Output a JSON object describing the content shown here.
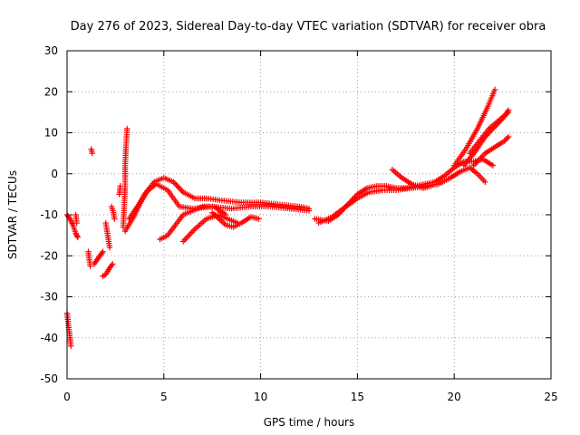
{
  "chart_data": {
    "type": "scatter",
    "title": "Day 276 of 2023, Sidereal Day-to-day VTEC variation (SDTVAR) for receiver obra",
    "xlabel": "GPS time / hours",
    "ylabel": "SDTVAR / TECUs",
    "xlim": [
      0,
      25
    ],
    "ylim": [
      -50,
      30
    ],
    "x_ticks": [
      0,
      5,
      10,
      15,
      20,
      25
    ],
    "y_ticks": [
      -50,
      -40,
      -30,
      -20,
      -10,
      0,
      10,
      20,
      30
    ],
    "grid": true,
    "marker": "plus",
    "series": [
      {
        "name": "SDTVAR",
        "color": "#ff0000",
        "segments": [
          [
            [
              0.0,
              -34
            ],
            [
              0.05,
              -36
            ],
            [
              0.1,
              -38
            ],
            [
              0.15,
              -40
            ],
            [
              0.2,
              -42
            ]
          ],
          [
            [
              0.0,
              -10
            ],
            [
              0.15,
              -11
            ],
            [
              0.3,
              -12.5
            ],
            [
              0.45,
              -14.5
            ],
            [
              0.55,
              -15.5
            ]
          ],
          [
            [
              0.45,
              -10
            ],
            [
              0.5,
              -12
            ]
          ],
          [
            [
              1.1,
              -19
            ],
            [
              1.15,
              -21
            ],
            [
              1.2,
              -22.5
            ]
          ],
          [
            [
              1.25,
              6
            ],
            [
              1.3,
              5
            ]
          ],
          [
            [
              1.4,
              -22
            ],
            [
              1.55,
              -21
            ],
            [
              1.7,
              -20
            ],
            [
              1.85,
              -19
            ]
          ],
          [
            [
              1.85,
              -25
            ],
            [
              2.0,
              -24.5
            ],
            [
              2.2,
              -23
            ],
            [
              2.35,
              -22
            ]
          ],
          [
            [
              2.0,
              -12
            ],
            [
              2.1,
              -15
            ],
            [
              2.2,
              -18
            ]
          ],
          [
            [
              2.3,
              -8
            ],
            [
              2.4,
              -9.5
            ],
            [
              2.45,
              -11
            ]
          ],
          [
            [
              2.7,
              -5
            ],
            [
              2.75,
              -3
            ]
          ],
          [
            [
              2.9,
              -13
            ],
            [
              2.95,
              -8
            ],
            [
              3.0,
              -3
            ],
            [
              3.0,
              2
            ],
            [
              3.05,
              7
            ],
            [
              3.1,
              11
            ]
          ],
          [
            [
              3.0,
              -14
            ],
            [
              3.5,
              -10
            ],
            [
              4.0,
              -5
            ],
            [
              4.5,
              -2
            ],
            [
              5.0,
              -1
            ],
            [
              5.5,
              -2
            ],
            [
              6.0,
              -4.5
            ],
            [
              6.6,
              -6
            ],
            [
              7.2,
              -6
            ],
            [
              8.0,
              -6.5
            ],
            [
              9.0,
              -7
            ],
            [
              10.0,
              -7
            ],
            [
              11.0,
              -7.5
            ],
            [
              12.0,
              -8
            ],
            [
              12.5,
              -8.5
            ]
          ],
          [
            [
              3.2,
              -11
            ],
            [
              3.7,
              -7.5
            ],
            [
              4.2,
              -4
            ],
            [
              4.6,
              -2.5
            ],
            [
              5.2,
              -4
            ],
            [
              5.8,
              -8
            ],
            [
              6.5,
              -8.5
            ],
            [
              7.5,
              -8
            ],
            [
              8.5,
              -8.5
            ],
            [
              9.5,
              -8
            ],
            [
              10.5,
              -8
            ],
            [
              11.5,
              -8.5
            ],
            [
              12.5,
              -9
            ]
          ],
          [
            [
              4.8,
              -16
            ],
            [
              5.2,
              -15
            ],
            [
              5.6,
              -12.5
            ],
            [
              6.0,
              -10
            ],
            [
              6.5,
              -9
            ],
            [
              7.0,
              -8
            ],
            [
              7.6,
              -8
            ],
            [
              8.2,
              -10
            ]
          ],
          [
            [
              6.0,
              -16.5
            ],
            [
              6.6,
              -13.5
            ],
            [
              7.2,
              -11
            ],
            [
              7.8,
              -10
            ],
            [
              8.3,
              -11
            ],
            [
              8.8,
              -12
            ]
          ],
          [
            [
              7.5,
              -9.5
            ],
            [
              8.2,
              -12.5
            ],
            [
              8.6,
              -13
            ],
            [
              9.0,
              -12
            ],
            [
              9.5,
              -10.5
            ],
            [
              9.9,
              -11
            ]
          ],
          [
            [
              12.8,
              -11
            ],
            [
              13.5,
              -11.5
            ],
            [
              14.0,
              -10
            ],
            [
              14.5,
              -7.5
            ],
            [
              15.0,
              -5
            ],
            [
              15.5,
              -3.5
            ],
            [
              16.0,
              -3
            ],
            [
              16.5,
              -3
            ],
            [
              17.0,
              -3.5
            ],
            [
              17.5,
              -3.5
            ],
            [
              18.0,
              -3
            ],
            [
              18.5,
              -2.5
            ],
            [
              19.0,
              -2
            ],
            [
              19.5,
              -0.5
            ],
            [
              20.0,
              1.5
            ],
            [
              20.5,
              3
            ],
            [
              21.0,
              3
            ],
            [
              21.5,
              3.5
            ],
            [
              22.0,
              2
            ]
          ],
          [
            [
              13.0,
              -12
            ],
            [
              13.7,
              -10.5
            ],
            [
              14.4,
              -8
            ],
            [
              15.0,
              -6
            ],
            [
              15.6,
              -4.5
            ],
            [
              16.3,
              -4
            ],
            [
              17.0,
              -4
            ],
            [
              17.8,
              -3.5
            ],
            [
              18.5,
              -3
            ],
            [
              19.2,
              -2.5
            ],
            [
              19.8,
              -1
            ],
            [
              20.3,
              0.5
            ],
            [
              20.8,
              1.5
            ],
            [
              21.2,
              0
            ],
            [
              21.6,
              -2
            ]
          ],
          [
            [
              16.8,
              1
            ],
            [
              17.3,
              -1
            ],
            [
              17.8,
              -2.5
            ],
            [
              18.4,
              -3.5
            ],
            [
              18.8,
              -3
            ]
          ],
          [
            [
              20.0,
              2
            ],
            [
              20.6,
              6
            ],
            [
              21.2,
              11
            ],
            [
              21.7,
              16
            ],
            [
              22.1,
              20.5
            ]
          ],
          [
            [
              20.5,
              2
            ],
            [
              21.1,
              5.5
            ],
            [
              21.6,
              9
            ],
            [
              22.1,
              11.5
            ],
            [
              22.6,
              14
            ],
            [
              22.8,
              15.5
            ]
          ],
          [
            [
              21.0,
              2
            ],
            [
              21.6,
              5
            ],
            [
              22.1,
              6.5
            ],
            [
              22.6,
              8
            ],
            [
              22.8,
              9
            ]
          ],
          [
            [
              20.8,
              5
            ],
            [
              21.3,
              8
            ],
            [
              21.8,
              11
            ],
            [
              22.3,
              13
            ],
            [
              22.8,
              15
            ]
          ]
        ]
      }
    ]
  }
}
